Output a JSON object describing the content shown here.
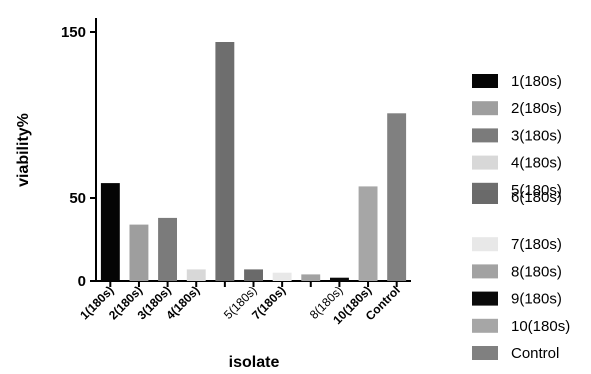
{
  "chart_data": {
    "type": "bar",
    "xlabel": "isolate",
    "ylabel": "viability%",
    "ylim": [
      0,
      150
    ],
    "yticks": [
      {
        "value": 0,
        "label": "0"
      },
      {
        "value": 50,
        "label": "50"
      },
      {
        "value": 150,
        "label": "150"
      }
    ],
    "grid": false,
    "legend_position": "right",
    "categories": [
      "1(180s)",
      "2(180s)",
      "3(180s)",
      "4(180s)",
      "5(180s)",
      "7(180s)",
      "8(180s)",
      "10(180s)",
      "Control"
    ],
    "categories_thin": [
      false,
      false,
      false,
      false,
      true,
      false,
      true,
      false,
      false
    ],
    "bars": [
      {
        "name": "1(180s)",
        "value": 59,
        "color": "#050505",
        "label_index": 0
      },
      {
        "name": "2(180s)",
        "value": 34,
        "color": "#9e9e9e",
        "label_index": 1
      },
      {
        "name": "3(180s)",
        "value": 38,
        "color": "#7b7b7b",
        "label_index": 2
      },
      {
        "name": "4(180s)",
        "value": 7,
        "color": "#d8d8d8",
        "label_index": 3
      },
      {
        "name": "5(180s)",
        "value": 144,
        "color": "#6e6e6e",
        "label_index": null
      },
      {
        "name": "6(180s)",
        "value": 7,
        "color": "#6a6a6a",
        "label_index": 4
      },
      {
        "name": "7(180s)",
        "value": 5,
        "color": "#e8e8e8",
        "label_index": 5
      },
      {
        "name": "8(180s)",
        "value": 4,
        "color": "#a2a2a2",
        "label_index": null
      },
      {
        "name": "9(180s)",
        "value": 2,
        "color": "#0a0a0a",
        "label_index": 6
      },
      {
        "name": "10(180s)",
        "value": 57,
        "color": "#a6a6a6",
        "label_index": 7
      },
      {
        "name": "Control",
        "value": 101,
        "color": "#808080",
        "label_index": 8
      }
    ],
    "legend": [
      {
        "label": "1(180s)",
        "color": "#050505"
      },
      {
        "label": "2(180s)",
        "color": "#9e9e9e"
      },
      {
        "label": "3(180s)",
        "color": "#7b7b7b"
      },
      {
        "label": "4(180s)",
        "color": "#d8d8d8"
      },
      {
        "label": "5(180s)",
        "color": "#6e6e6e"
      },
      {
        "label": "6(180s)",
        "color": "#6a6a6a"
      },
      {
        "label": "7(180s)",
        "color": "#e8e8e8"
      },
      {
        "label": "8(180s)",
        "color": "#a2a2a2"
      },
      {
        "label": "9(180s)",
        "color": "#0a0a0a"
      },
      {
        "label": "10(180s)",
        "color": "#a6a6a6"
      },
      {
        "label": "Control",
        "color": "#808080"
      }
    ]
  }
}
